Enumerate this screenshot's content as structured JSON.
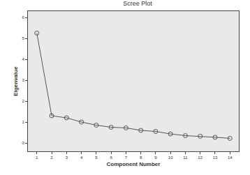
{
  "chart_data": {
    "type": "line",
    "title": "Scree Plot",
    "x_label": "Component Number",
    "y_label": "Eigenvalue",
    "x": [
      1,
      2,
      3,
      4,
      5,
      6,
      7,
      8,
      9,
      10,
      11,
      12,
      13,
      14
    ],
    "values": [
      5.25,
      1.3,
      1.2,
      1.0,
      0.85,
      0.75,
      0.72,
      0.6,
      0.55,
      0.43,
      0.35,
      0.32,
      0.27,
      0.22
    ],
    "color": "#555555",
    "marker": "open-circle",
    "xlim": [
      0.4,
      14.6
    ],
    "xticks": [
      1,
      2,
      3,
      4,
      5,
      6,
      7,
      8,
      9,
      10,
      11,
      12,
      13,
      14
    ],
    "ylim": [
      -0.4,
      6.3
    ],
    "yticks": [
      0,
      1,
      2,
      3,
      4,
      5,
      6
    ],
    "grid": false
  }
}
